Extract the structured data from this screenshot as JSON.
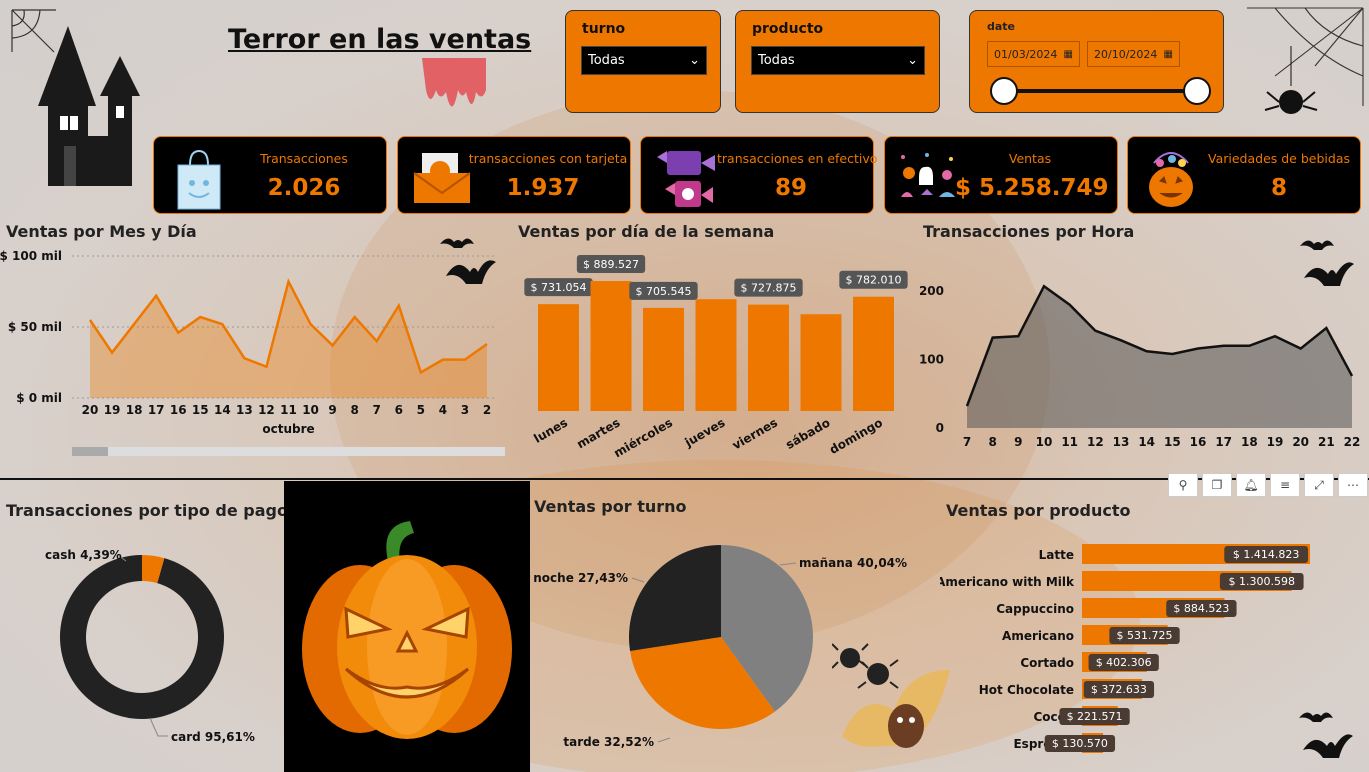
{
  "header": {
    "title": "Terror en las ventas"
  },
  "filters": {
    "turno": {
      "label": "turno",
      "value": "Todas"
    },
    "producto": {
      "label": "producto",
      "value": "Todas"
    },
    "date": {
      "label": "date",
      "start": "01/03/2024",
      "end": "20/10/2024"
    }
  },
  "kpis": [
    {
      "label": "Transacciones",
      "value": "2.026",
      "icon": "shopping-bag-icon"
    },
    {
      "label": "transacciones con tarjeta",
      "value": "1.937",
      "icon": "envelope-icon"
    },
    {
      "label": "transacciones en efectivo",
      "value": "89",
      "icon": "candy-icon"
    },
    {
      "label": "Ventas",
      "value": "$ 5.258.749",
      "icon": "ghosts-icon"
    },
    {
      "label": "Variedades de bebidas",
      "value": "8",
      "icon": "pumpkin-bucket-icon"
    }
  ],
  "sections": {
    "ventas_mes_dia": "Ventas por Mes y Día",
    "ventas_dia_semana": "Ventas por día de la semana",
    "transacciones_hora": "Transacciones por Hora",
    "transacciones_tipo_pago": "Transacciones por tipo de pago",
    "ventas_turno": "Ventas por turno",
    "ventas_producto": "Ventas por producto"
  },
  "colors": {
    "accent": "#ee7700",
    "dark": "#222222",
    "gray": "#808080"
  },
  "chart_data": [
    {
      "id": "ventas_mes_dia",
      "type": "area",
      "x": [
        "20",
        "19",
        "18",
        "17",
        "16",
        "15",
        "14",
        "13",
        "12",
        "11",
        "10",
        "9",
        "8",
        "7",
        "6",
        "5",
        "4",
        "3",
        "2"
      ],
      "xlabel": "octubre",
      "yticks": [
        "$ 100 mil",
        "$ 50 mil",
        "$ 0 mil"
      ],
      "ylim": [
        0,
        100
      ],
      "values": [
        55,
        32,
        52,
        72,
        46,
        57,
        52,
        28,
        22,
        82,
        52,
        37,
        57,
        40,
        65,
        18,
        27,
        27,
        38
      ]
    },
    {
      "id": "ventas_dia_semana",
      "type": "bar",
      "categories": [
        "lunes",
        "martes",
        "miércoles",
        "jueves",
        "viernes",
        "sábado",
        "domingo"
      ],
      "values": [
        731054,
        889527,
        705545,
        765000,
        727875,
        662000,
        782010
      ],
      "labels": [
        "$ 731.054",
        "$ 889.527",
        "$ 705.545",
        "",
        "$ 727.875",
        "",
        "$ 782.010"
      ]
    },
    {
      "id": "transacciones_hora",
      "type": "area",
      "x": [
        "7",
        "8",
        "9",
        "10",
        "11",
        "12",
        "13",
        "14",
        "15",
        "16",
        "17",
        "18",
        "19",
        "20",
        "21",
        "22"
      ],
      "yticks": [
        "200",
        "100",
        "0"
      ],
      "ylim": [
        0,
        200
      ],
      "values": [
        32,
        132,
        134,
        207,
        180,
        142,
        128,
        112,
        108,
        116,
        120,
        120,
        134,
        116,
        146,
        76
      ]
    },
    {
      "id": "transacciones_tipo_pago",
      "type": "pie",
      "labels": [
        "card 95,61%",
        "cash 4,39%"
      ],
      "values": [
        95.61,
        4.39
      ]
    },
    {
      "id": "ventas_turno",
      "type": "pie",
      "labels": [
        "mañana 40,04%",
        "tarde 32,52%",
        "noche 27,43%"
      ],
      "values": [
        40.04,
        32.52,
        27.43
      ]
    },
    {
      "id": "ventas_producto",
      "type": "bar",
      "categories": [
        "Latte",
        "Americano with Milk",
        "Cappuccino",
        "Americano",
        "Cortado",
        "Hot Chocolate",
        "Cocoa",
        "Espresso"
      ],
      "values": [
        1414823,
        1300598,
        884523,
        531725,
        402306,
        372633,
        221571,
        130570
      ],
      "labels": [
        "$ 1.414.823",
        "$ 1.300.598",
        "$ 884.523",
        "$ 531.725",
        "$ 402.306",
        "$ 372.633",
        "$ 221.571",
        "$ 130.570"
      ]
    }
  ]
}
